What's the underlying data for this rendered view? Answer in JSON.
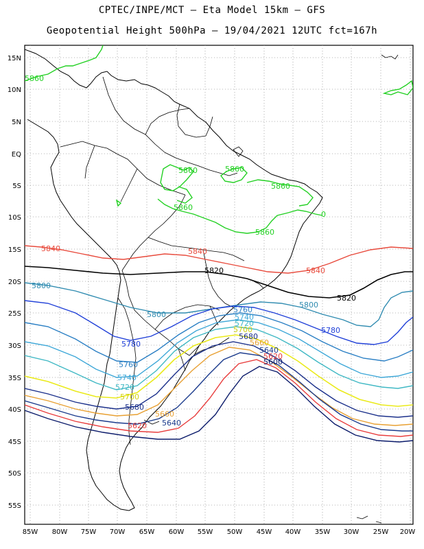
{
  "header": {
    "line1": "CPTEC/INPE/MCT –  Eta Model 15km – GFS",
    "line2": "Geopotential Height 500hPa – 19/04/2021 12UTC fct=167h"
  },
  "axes": {
    "lat_labels": [
      "15N",
      "10N",
      "5N",
      "EQ",
      "5S",
      "10S",
      "15S",
      "20S",
      "25S",
      "30S",
      "35S",
      "40S",
      "45S",
      "50S",
      "55S"
    ],
    "lon_labels": [
      "85W",
      "80W",
      "75W",
      "70W",
      "65W",
      "60W",
      "55W",
      "50W",
      "45W",
      "40W",
      "35W",
      "30W",
      "25W",
      "20W"
    ]
  },
  "contours": [
    {
      "value": "5860",
      "color": "#22d022"
    },
    {
      "value": "5840",
      "color": "#e84a3c"
    },
    {
      "value": "5820",
      "color": "#000000"
    },
    {
      "value": "5800",
      "color": "#2f8bb0"
    },
    {
      "value": "5780",
      "color": "#1f3fd8"
    },
    {
      "value": "5760",
      "color": "#2a7fc4"
    },
    {
      "value": "5740",
      "color": "#3fa8d8"
    },
    {
      "value": "5720",
      "color": "#3fb8c4"
    },
    {
      "value": "5700",
      "color": "#eaea1a"
    },
    {
      "value": "5680",
      "color": "#1a2f8a"
    },
    {
      "value": "5660",
      "color": "#e8a032"
    },
    {
      "value": "5640",
      "color": "#1a3a8c"
    },
    {
      "value": "5620",
      "color": "#e83c3c"
    },
    {
      "value": "5600",
      "color": "#0a1a6a"
    }
  ],
  "labels": [
    {
      "text": "5860",
      "color": "#22d022"
    },
    {
      "text": "5860",
      "color": "#22d022"
    },
    {
      "text": "5860",
      "color": "#22d022"
    },
    {
      "text": "5860",
      "color": "#22d022"
    },
    {
      "text": "5860",
      "color": "#22d022"
    },
    {
      "text": "5860",
      "color": "#22d022"
    },
    {
      "text": "0",
      "color": "#22d022"
    },
    {
      "text": "5840",
      "color": "#e84a3c"
    },
    {
      "text": "5840",
      "color": "#e84a3c"
    },
    {
      "text": "5840",
      "color": "#e84a3c"
    },
    {
      "text": "5820",
      "color": "#000000"
    },
    {
      "text": "5820",
      "color": "#000000"
    },
    {
      "text": "5800",
      "color": "#2f8bb0"
    },
    {
      "text": "5800",
      "color": "#2f8bb0"
    },
    {
      "text": "5800",
      "color": "#2f8bb0"
    },
    {
      "text": "5780",
      "color": "#1f3fd8"
    },
    {
      "text": "5780",
      "color": "#1f3fd8"
    },
    {
      "text": "5760",
      "color": "#2a7fc4"
    },
    {
      "text": "5760",
      "color": "#2a7fc4"
    },
    {
      "text": "5740",
      "color": "#3fa8d8"
    },
    {
      "text": "5740",
      "color": "#3fa8d8"
    },
    {
      "text": "5720",
      "color": "#3fb8c4"
    },
    {
      "text": "5720",
      "color": "#3fb8c4"
    },
    {
      "text": "5700",
      "color": "#d0d010"
    },
    {
      "text": "5700",
      "color": "#d0d010"
    },
    {
      "text": "5680",
      "color": "#1a2f8a"
    },
    {
      "text": "5680",
      "color": "#1a2f8a"
    },
    {
      "text": "5660",
      "color": "#e8a032"
    },
    {
      "text": "5660",
      "color": "#e8a032"
    },
    {
      "text": "5640",
      "color": "#1a3a8c"
    },
    {
      "text": "5640",
      "color": "#1a3a8c"
    },
    {
      "text": "5620",
      "color": "#e83c3c"
    },
    {
      "text": "5620",
      "color": "#e83c3c"
    },
    {
      "text": "5600",
      "color": "#0a1a6a"
    }
  ]
}
